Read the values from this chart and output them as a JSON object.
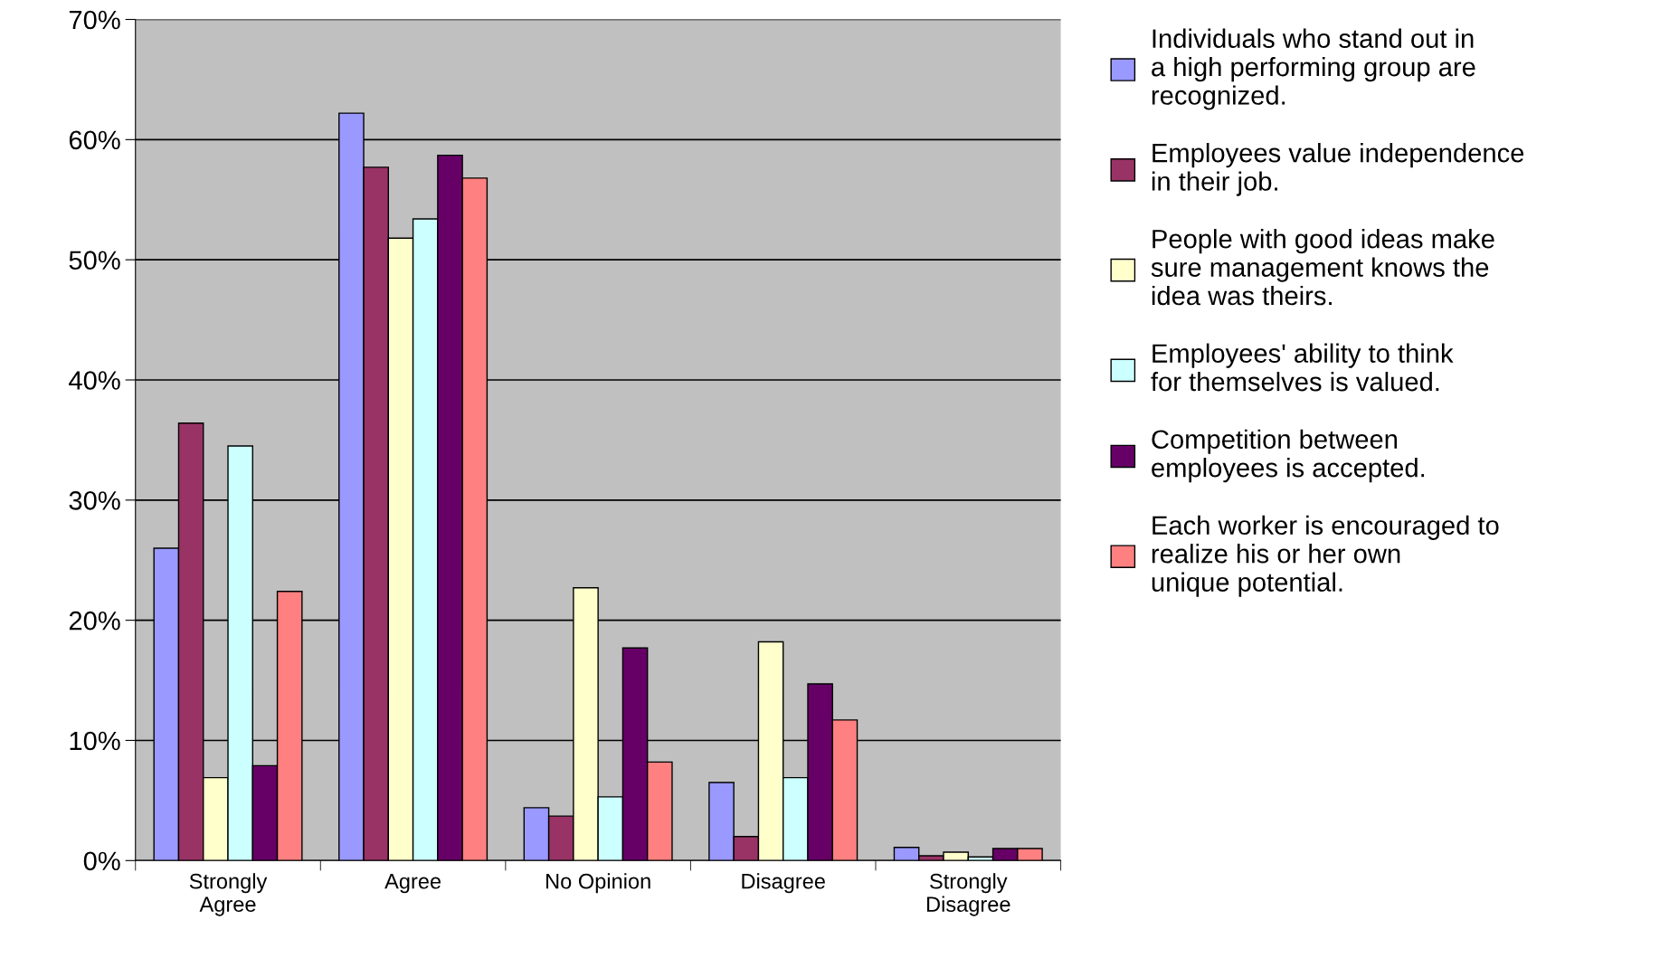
{
  "chart_data": {
    "type": "bar",
    "categories": [
      "Strongly Agree",
      "Agree",
      "No Opinion",
      "Disagree",
      "Strongly Disagree"
    ],
    "series": [
      {
        "name": "Individuals who stand out in a high performing group are recognized.",
        "color": "#9999ff",
        "values": [
          26.0,
          62.2,
          4.4,
          6.5,
          1.1
        ]
      },
      {
        "name": "Employees value independence in their job.",
        "color": "#993366",
        "values": [
          36.4,
          57.7,
          3.7,
          2.0,
          0.4
        ]
      },
      {
        "name": "People with good ideas make sure management knows the idea was theirs.",
        "color": "#ffffcc",
        "values": [
          6.9,
          51.8,
          22.7,
          18.2,
          0.7
        ]
      },
      {
        "name": "Employees' ability to think for themselves is valued.",
        "color": "#ccffff",
        "values": [
          34.5,
          53.4,
          5.3,
          6.9,
          0.3
        ]
      },
      {
        "name": "Competition between employees is accepted.",
        "color": "#660066",
        "values": [
          7.9,
          58.7,
          17.7,
          14.7,
          1.0
        ]
      },
      {
        "name": "Each worker is encouraged to realize his or her own unique potential.",
        "color": "#ff8080",
        "values": [
          22.4,
          56.8,
          8.2,
          11.7,
          1.0
        ]
      }
    ],
    "ylim": [
      0,
      70
    ],
    "yticks": [
      {
        "value": 0,
        "label": "0%"
      },
      {
        "value": 10,
        "label": "10%"
      },
      {
        "value": 20,
        "label": "20%"
      },
      {
        "value": 30,
        "label": "30%"
      },
      {
        "value": 40,
        "label": "40%"
      },
      {
        "value": 50,
        "label": "50%"
      },
      {
        "value": 60,
        "label": "60%"
      },
      {
        "value": 70,
        "label": "70%"
      }
    ],
    "grid": "y",
    "legend": "right"
  }
}
